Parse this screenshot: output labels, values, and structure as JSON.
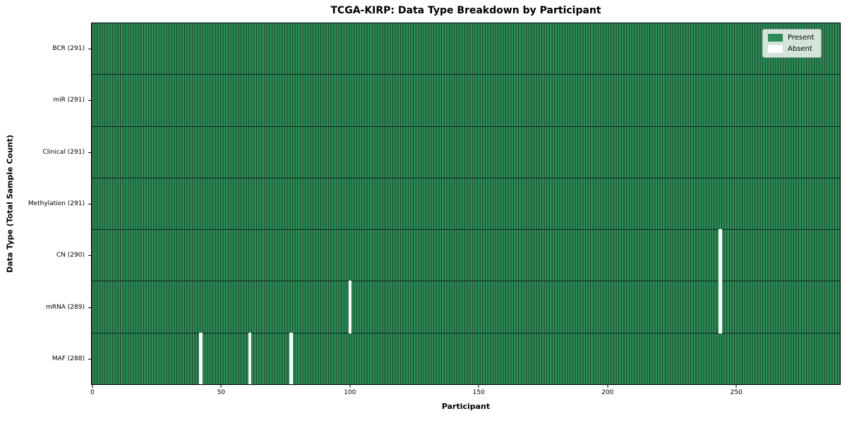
{
  "chart_data": {
    "type": "heatmap",
    "title": "TCGA-KIRP: Data Type Breakdown by Participant",
    "xlabel": "Participant",
    "ylabel": "Data Type (Total Sample Count)",
    "n_participants": 291,
    "xlim": [
      -0.5,
      290.5
    ],
    "x_ticks": [
      0,
      50,
      100,
      150,
      200,
      250
    ],
    "grid": false,
    "rows": [
      {
        "label": "BCR (291)",
        "data_type": "BCR",
        "present_count": 291,
        "absent_participants": []
      },
      {
        "label": "miR (291)",
        "data_type": "miR",
        "present_count": 291,
        "absent_participants": []
      },
      {
        "label": "Clinical (291)",
        "data_type": "Clinical",
        "present_count": 291,
        "absent_participants": []
      },
      {
        "label": "Methylation (291)",
        "data_type": "Methylation",
        "present_count": 291,
        "absent_participants": []
      },
      {
        "label": "CN (290)",
        "data_type": "CN",
        "present_count": 290,
        "absent_participants": [
          244
        ]
      },
      {
        "label": "mRNA (289)",
        "data_type": "mRNA",
        "present_count": 289,
        "absent_participants": [
          100,
          244
        ]
      },
      {
        "label": "MAF (288)",
        "data_type": "MAF",
        "present_count": 288,
        "absent_participants": [
          42,
          61,
          77
        ]
      }
    ],
    "legend": [
      {
        "label": "Present",
        "color": "#2e8b57"
      },
      {
        "label": "Absent",
        "color": "#ffffff"
      }
    ],
    "legend_position": "upper right",
    "colors": {
      "present": "#2e8b57",
      "absent": "#ffffff",
      "cell_edge": "rgba(0,0,0,0.55)",
      "row_boundary": "rgba(0,0,0,0.7)"
    }
  }
}
